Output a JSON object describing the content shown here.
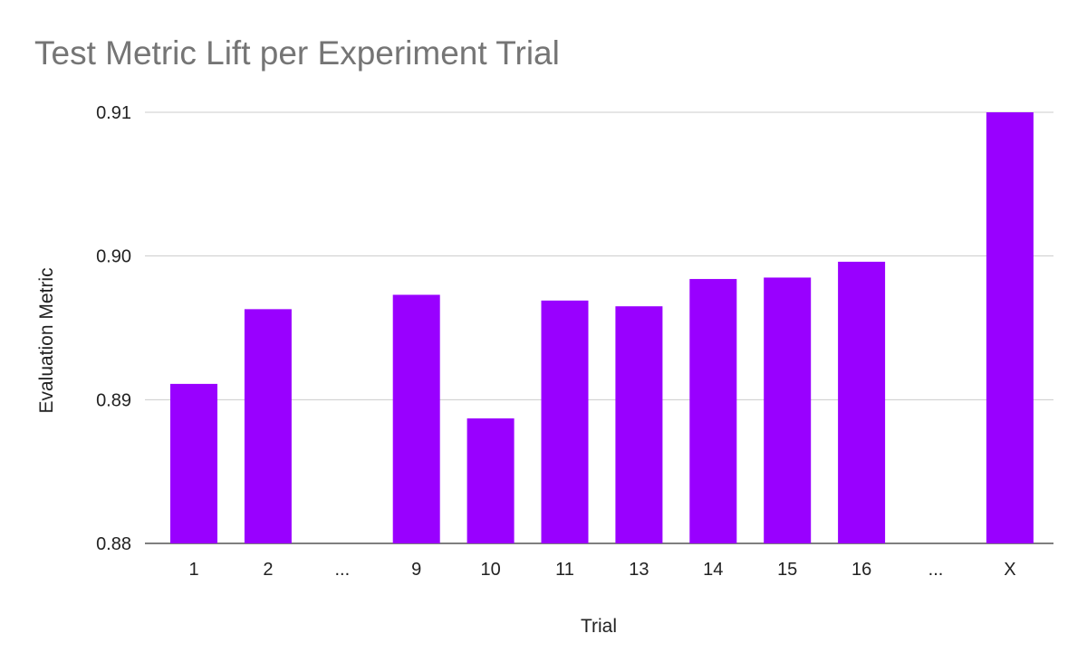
{
  "chart_data": {
    "type": "bar",
    "title": "Test Metric Lift per Experiment Trial",
    "xlabel": "Trial",
    "ylabel": "Evaluation Metric",
    "categories": [
      "1",
      "2",
      "...",
      "9",
      "10",
      "11",
      "13",
      "14",
      "15",
      "16",
      "...",
      "X"
    ],
    "values": [
      0.8911,
      0.8963,
      null,
      0.8973,
      0.8887,
      0.8969,
      0.8965,
      0.8984,
      0.8985,
      0.8996,
      null,
      0.91
    ],
    "ylim": [
      0.88,
      0.91
    ],
    "yticks": [
      0.88,
      0.89,
      0.9,
      0.91
    ],
    "ytick_labels": [
      "0.88",
      "0.89",
      "0.90",
      "0.91"
    ],
    "grid": true,
    "legend": "none",
    "bar_color": "#9900ff",
    "grid_color": "#cccccc"
  }
}
